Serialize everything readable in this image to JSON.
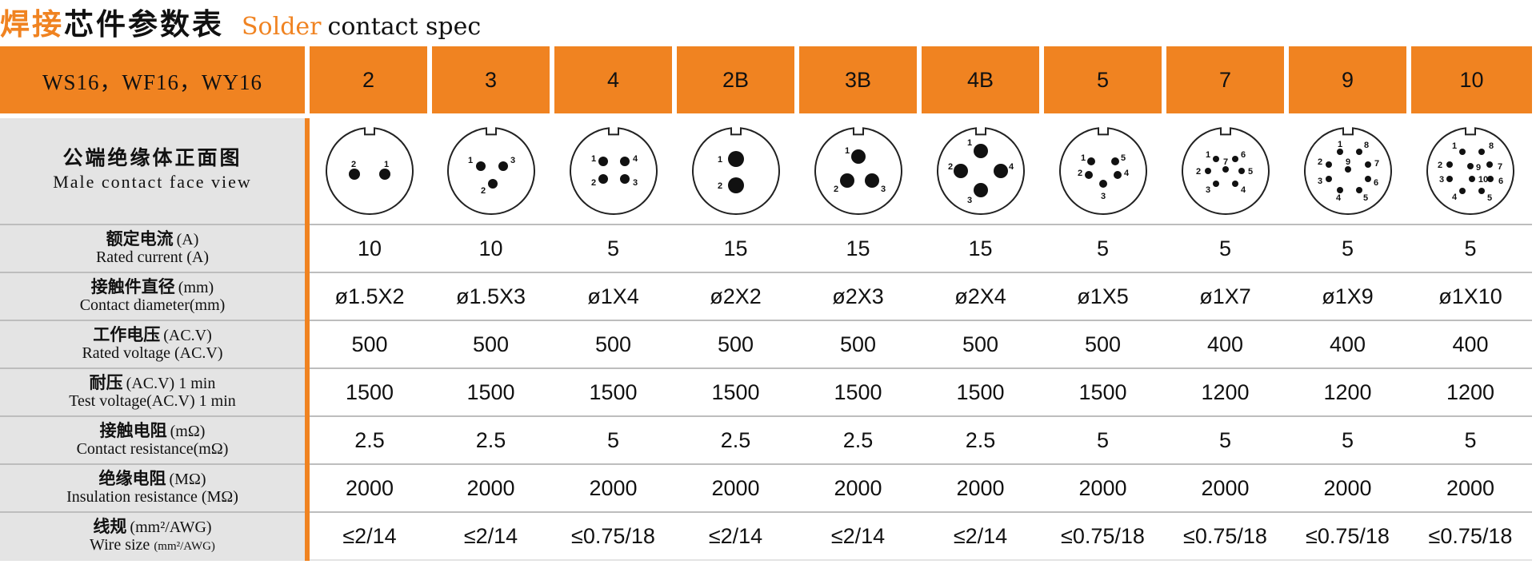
{
  "title": {
    "cn_orange": "焊接",
    "cn_black": "芯件参数表",
    "en_orange": "Solder",
    "en_black": "contact spec"
  },
  "header": {
    "model": "WS16，WF16，WY16",
    "columns": [
      "2",
      "3",
      "4",
      "2B",
      "3B",
      "4B",
      "5",
      "7",
      "9",
      "10"
    ]
  },
  "face_row": {
    "label_cn": "公端绝缘体正面图",
    "label_en": "Male contact face view",
    "diagrams": [
      {
        "pins": [
          "2",
          "1"
        ]
      },
      {
        "pins": [
          "1",
          "3",
          "2"
        ]
      },
      {
        "pins": [
          "1",
          "4",
          "2",
          "3"
        ]
      },
      {
        "pins": [
          "1",
          "2"
        ]
      },
      {
        "pins": [
          "1",
          "2",
          "3"
        ]
      },
      {
        "pins": [
          "1",
          "2",
          "4",
          "3"
        ]
      },
      {
        "pins": [
          "1",
          "5",
          "2",
          "4",
          "3"
        ]
      },
      {
        "pins": [
          "1",
          "6",
          "7",
          "2",
          "5",
          "3",
          "4"
        ]
      },
      {
        "pins": [
          "1",
          "8",
          "2",
          "9",
          "7",
          "3",
          "6",
          "4",
          "5"
        ]
      },
      {
        "pins": [
          "1",
          "8",
          "2",
          "9",
          "7",
          "3",
          "10",
          "6",
          "4",
          "5"
        ]
      }
    ]
  },
  "rows": [
    {
      "cn": "额定电流",
      "cn_suffix": "(A)",
      "en": "Rated current (A)",
      "en_small": "",
      "values": [
        "10",
        "10",
        "5",
        "15",
        "15",
        "15",
        "5",
        "5",
        "5",
        "5"
      ]
    },
    {
      "cn": "接触件直径",
      "cn_suffix": "(mm)",
      "en": "Contact diameter(mm)",
      "en_small": "",
      "values": [
        "ø1.5X2",
        "ø1.5X3",
        "ø1X4",
        "ø2X2",
        "ø2X3",
        "ø2X4",
        "ø1X5",
        "ø1X7",
        "ø1X9",
        "ø1X10"
      ]
    },
    {
      "cn": "工作电压",
      "cn_suffix": "(AC.V)",
      "en": "Rated voltage (AC.V)",
      "en_small": "",
      "values": [
        "500",
        "500",
        "500",
        "500",
        "500",
        "500",
        "500",
        "400",
        "400",
        "400"
      ]
    },
    {
      "cn": "耐压",
      "cn_suffix": "(AC.V) 1 min",
      "en": "Test voltage(AC.V) 1 min",
      "en_small": "",
      "values": [
        "1500",
        "1500",
        "1500",
        "1500",
        "1500",
        "1500",
        "1500",
        "1200",
        "1200",
        "1200"
      ]
    },
    {
      "cn": "接触电阻",
      "cn_suffix": "(mΩ)",
      "en": "Contact resistance(mΩ)",
      "en_small": "",
      "values": [
        "2.5",
        "2.5",
        "5",
        "2.5",
        "2.5",
        "2.5",
        "5",
        "5",
        "5",
        "5"
      ]
    },
    {
      "cn": "绝缘电阻",
      "cn_suffix": "(MΩ)",
      "en": "Insulation resistance (MΩ)",
      "en_small": "",
      "values": [
        "2000",
        "2000",
        "2000",
        "2000",
        "2000",
        "2000",
        "2000",
        "2000",
        "2000",
        "2000"
      ]
    },
    {
      "cn": "线规",
      "cn_suffix": "(mm²/AWG)",
      "en": "Wire size",
      "en_small": "(mm²/AWG)",
      "values": [
        "≤2/14",
        "≤2/14",
        "≤0.75/18",
        "≤2/14",
        "≤2/14",
        "≤2/14",
        "≤0.75/18",
        "≤0.75/18",
        "≤0.75/18",
        "≤0.75/18"
      ]
    }
  ],
  "colors": {
    "accent": "#f08321",
    "label_bg": "#e4e4e4"
  }
}
